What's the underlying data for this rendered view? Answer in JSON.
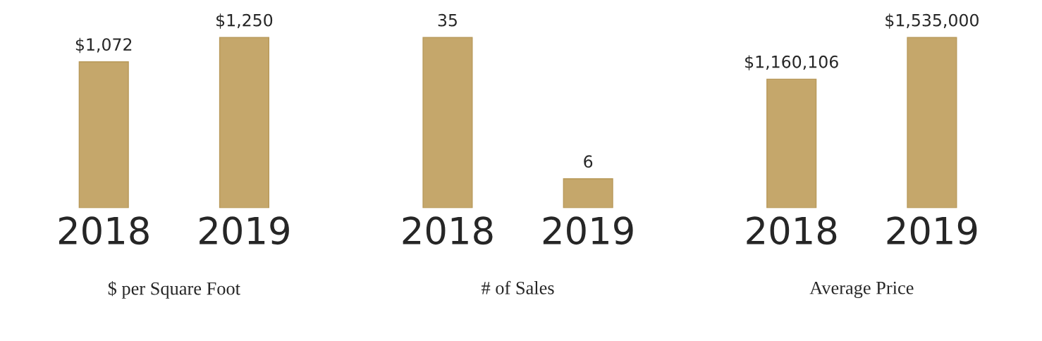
{
  "chart_data": [
    {
      "type": "bar",
      "categories": [
        "2018",
        "2019"
      ],
      "values": [
        1072,
        1250
      ],
      "color": "#c5a76b",
      "data_labels": true,
      "value_labels": [
        "$1,072",
        "$1,250"
      ],
      "xlabel": "$ per Square Foot"
    },
    {
      "type": "bar",
      "categories": [
        "2018",
        "2019"
      ],
      "values": [
        35,
        6
      ],
      "color": "#c5a76b",
      "data_labels": true,
      "value_labels": [
        "35",
        "6"
      ],
      "xlabel": "# of Sales"
    },
    {
      "type": "bar",
      "categories": [
        "2018",
        "2019"
      ],
      "values": [
        1160106,
        1535000
      ],
      "color": "#c5a76b",
      "data_labels": true,
      "value_labels": [
        "$1,160,106",
        "$1,535,000"
      ],
      "xlabel": "Average Price"
    }
  ]
}
